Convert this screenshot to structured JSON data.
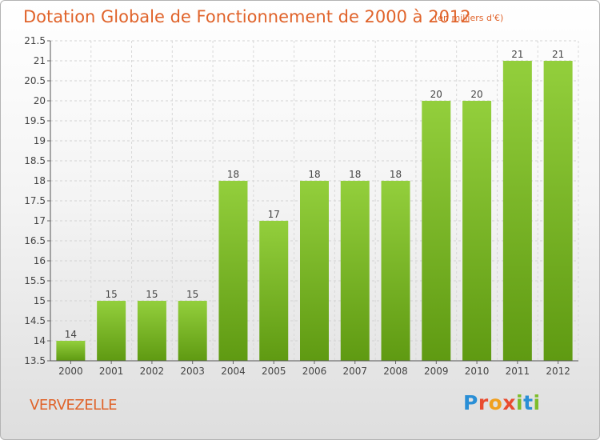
{
  "chart_data": {
    "type": "bar",
    "title": "Dotation Globale de Fonctionnement de 2000 à 2012",
    "subtitle": "(en milliers d'€)",
    "categories": [
      "2000",
      "2001",
      "2002",
      "2003",
      "2004",
      "2005",
      "2006",
      "2007",
      "2008",
      "2009",
      "2010",
      "2011",
      "2012"
    ],
    "values": [
      14,
      15,
      15,
      15,
      18,
      17,
      18,
      18,
      18,
      20,
      20,
      21,
      21
    ],
    "data_labels": [
      "14",
      "15",
      "15",
      "15",
      "18",
      "17",
      "18",
      "18",
      "18",
      "20",
      "20",
      "21",
      "21"
    ],
    "ylim": [
      13.5,
      21.5
    ],
    "yticks": [
      "13.5",
      "14",
      "14.5",
      "15",
      "15.5",
      "16",
      "16.5",
      "17",
      "17.5",
      "18",
      "18.5",
      "19",
      "19.5",
      "20",
      "20.5",
      "21",
      "21.5"
    ],
    "grid": true,
    "bar_color": "#7dbd2a"
  },
  "footer": {
    "place": "VERVEZELLE",
    "brand_letters": [
      "P",
      "r",
      "o",
      "x",
      "i",
      "t",
      "i"
    ],
    "brand_colors": [
      "#2a8fd6",
      "#e94c2f",
      "#f0a020",
      "#e94c2f",
      "#7dbd2a",
      "#2a8fd6",
      "#7dbd2a"
    ]
  }
}
